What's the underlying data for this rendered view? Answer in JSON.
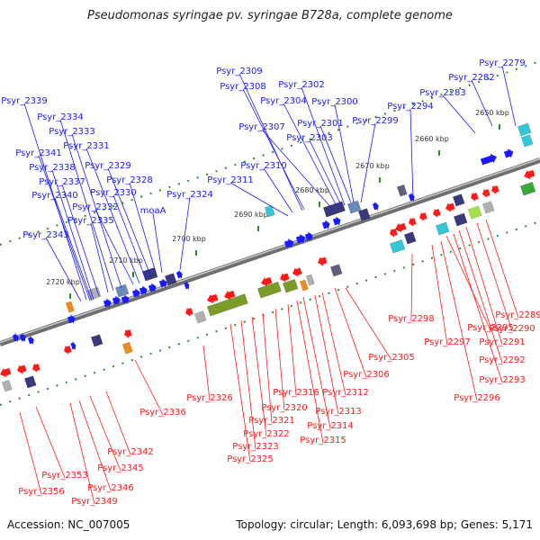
{
  "title": "Pseudomonas syringae pv. syringae B728a, complete genome",
  "accession": "Accession: NC_007005",
  "topology": "Topology: circular; Length: 6,093,698 bp; Genes: 5,171",
  "colors": {
    "forward": "#1a1aff",
    "reverse": "#ff1a1a",
    "backbone": "#888888",
    "ticks": "#2e8b2e"
  },
  "kbp_markers": [
    "2650 kbp",
    "2660 kbp",
    "2670 kbp",
    "2680 kbp",
    "2690 kbp",
    "2700 kbp",
    "2710 kbp",
    "2720 kbp"
  ],
  "forward_genes": [
    "Psyr_2279",
    "Psyr_2282",
    "Psyr_2283",
    "Psyr_2294",
    "Psyr_2299",
    "Psyr_2300",
    "Psyr_2301",
    "Psyr_2302",
    "Psyr_2303",
    "Psyr_2304",
    "Psyr_2307",
    "Psyr_2308",
    "Psyr_2309",
    "Psyr_2310",
    "Psyr_2311",
    "Psyr_2324",
    "moaA",
    "Psyr_2328",
    "Psyr_2329",
    "Psyr_2330",
    "Psyr_2331",
    "Psyr_2332",
    "Psyr_2333",
    "Psyr_2334",
    "Psyr_2335",
    "Psyr_2337",
    "Psyr_2338",
    "Psyr_2339",
    "Psyr_2340",
    "Psyr_2341",
    "Psyr_2343"
  ],
  "reverse_genes": [
    "Psyr_2289",
    "Psyr_2290",
    "Psyr_2291",
    "Psyr_2292",
    "Psyr_2293",
    "Psyr_2295",
    "Psyr_2296",
    "Psyr_2297",
    "Psyr_2298",
    "Psyr_2305",
    "Psyr_2306",
    "Psyr_2312",
    "Psyr_2313",
    "Psyr_2314",
    "Psyr_2315",
    "Psyr_2316",
    "Psyr_2320",
    "Psyr_2321",
    "Psyr_2322",
    "Psyr_2323",
    "Psyr_2325",
    "Psyr_2326",
    "Psyr_2336",
    "Psyr_2342",
    "Psyr_2345",
    "Psyr_2346",
    "Psyr_2349",
    "Psyr_2353",
    "Psyr_2356"
  ]
}
